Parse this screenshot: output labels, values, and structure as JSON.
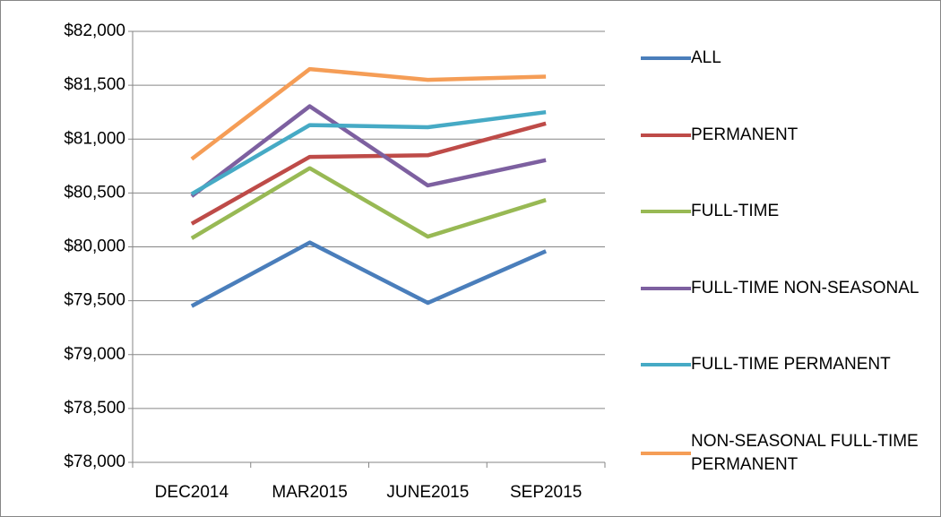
{
  "chart_data": {
    "type": "line",
    "categories": [
      "DEC2014",
      "MAR2015",
      "JUNE2015",
      "SEP2015"
    ],
    "series": [
      {
        "name": "ALL",
        "color": "#4a7ebb",
        "values": [
          79450,
          80040,
          79480,
          79960
        ]
      },
      {
        "name": "PERMANENT",
        "color": "#be4b48",
        "values": [
          80215,
          80835,
          80850,
          81145
        ]
      },
      {
        "name": "FULL-TIME",
        "color": "#98b954",
        "values": [
          80080,
          80730,
          80095,
          80435
        ]
      },
      {
        "name": "FULL-TIME NON-SEASONAL",
        "color": "#7d60a0",
        "values": [
          80470,
          81305,
          80570,
          80805
        ]
      },
      {
        "name": "FULL-TIME PERMANENT",
        "color": "#46aac5",
        "values": [
          80490,
          81130,
          81110,
          81250
        ]
      },
      {
        "name": "NON-SEASONAL FULL-TIME PERMANENT",
        "color": "#f59d56",
        "values": [
          80815,
          81650,
          81550,
          81580
        ]
      }
    ],
    "ylim": [
      78000,
      82000
    ],
    "yticks": [
      {
        "value": 78000,
        "label": "$78,000"
      },
      {
        "value": 78500,
        "label": "$78,500"
      },
      {
        "value": 79000,
        "label": "$79,000"
      },
      {
        "value": 79500,
        "label": "$79,500"
      },
      {
        "value": 80000,
        "label": "$80,000"
      },
      {
        "value": 80500,
        "label": "$80,500"
      },
      {
        "value": 81000,
        "label": "$81,000"
      },
      {
        "value": 81500,
        "label": "$81,500"
      },
      {
        "value": 82000,
        "label": "$82,000"
      }
    ],
    "grid": true,
    "legend": "right"
  }
}
